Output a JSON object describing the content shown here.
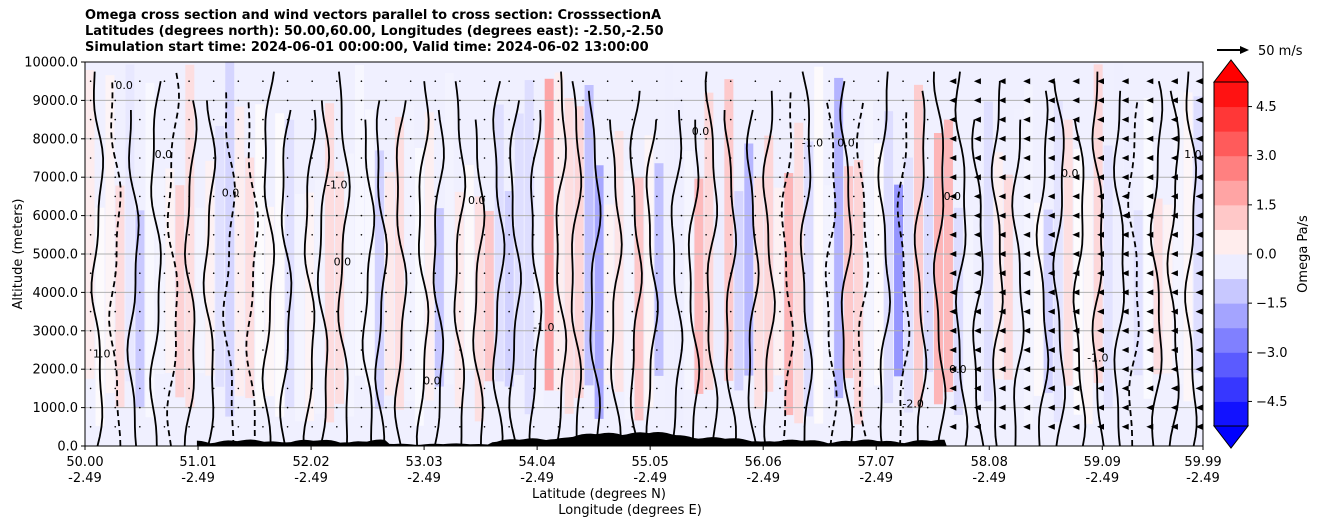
{
  "chart_data": {
    "type": "contour-cross-section",
    "title": {
      "line1": "Omega cross section and wind vectors parallel to cross section: CrosssectionA",
      "line2": "Latitudes (degrees north): 50.00,60.00, Longitudes (degrees east): -2.50,-2.50",
      "line3": "Simulation start time: 2024-06-01 00:00:00, Valid time: 2024-06-02 13:00:00"
    },
    "ylabel": "Altitude (meters)",
    "xlabel": "Latitude (degrees N)",
    "xlabel2": "Longitude (degrees E)",
    "ylim": [
      0,
      10000
    ],
    "xlim": [
      50.0,
      59.99
    ],
    "yticks": [
      "0.0",
      "1000.0",
      "2000.0",
      "3000.0",
      "4000.0",
      "5000.0",
      "6000.0",
      "7000.0",
      "8000.0",
      "9000.0",
      "10000.0"
    ],
    "ytick_values": [
      0,
      1000,
      2000,
      3000,
      4000,
      5000,
      6000,
      7000,
      8000,
      9000,
      10000
    ],
    "xticks": [
      {
        "lat": "50.00",
        "lon": "-2.49",
        "value": 50.0
      },
      {
        "lat": "51.01",
        "lon": "-2.49",
        "value": 51.01
      },
      {
        "lat": "52.02",
        "lon": "-2.49",
        "value": 52.02
      },
      {
        "lat": "53.03",
        "lon": "-2.49",
        "value": 53.03
      },
      {
        "lat": "54.04",
        "lon": "-2.49",
        "value": 54.04
      },
      {
        "lat": "55.05",
        "lon": "-2.49",
        "value": 55.05
      },
      {
        "lat": "56.06",
        "lon": "-2.49",
        "value": 56.06
      },
      {
        "lat": "57.07",
        "lon": "-2.49",
        "value": 57.07
      },
      {
        "lat": "58.08",
        "lon": "-2.49",
        "value": 58.08
      },
      {
        "lat": "59.09",
        "lon": "-2.49",
        "value": 59.09
      },
      {
        "lat": "59.99",
        "lon": "-2.49",
        "value": 59.99
      }
    ],
    "colorbar": {
      "label": "Omega Pa/s",
      "range": [
        -5.25,
        5.25
      ],
      "ticks": [
        "4.5",
        "3.0",
        "1.5",
        "0.0",
        "−1.5",
        "−3.0",
        "−4.5"
      ],
      "tick_values": [
        4.5,
        3.0,
        1.5,
        0.0,
        -1.5,
        -3.0,
        -4.5
      ],
      "levels": [
        -5.25,
        -4.5,
        -3.75,
        -3.0,
        -2.25,
        -1.5,
        -0.75,
        0.0,
        0.75,
        1.5,
        2.25,
        3.0,
        3.75,
        4.5,
        5.25
      ],
      "extend": "both"
    },
    "contour_labels": [
      {
        "text": "1.0",
        "x": 50.15,
        "y": 2300
      },
      {
        "text": "0.0",
        "x": 50.35,
        "y": 9300
      },
      {
        "text": "0.0",
        "x": 50.7,
        "y": 7500
      },
      {
        "text": "0.0",
        "x": 51.3,
        "y": 6500
      },
      {
        "text": "-1.0",
        "x": 52.25,
        "y": 6700
      },
      {
        "text": "0.0",
        "x": 52.3,
        "y": 4700
      },
      {
        "text": "0.0",
        "x": 53.5,
        "y": 6300
      },
      {
        "text": "-1.0",
        "x": 54.1,
        "y": 3000
      },
      {
        "text": "0.0",
        "x": 53.1,
        "y": 1600
      },
      {
        "text": "0.0",
        "x": 55.5,
        "y": 8100
      },
      {
        "text": "-1.0",
        "x": 56.5,
        "y": 7800
      },
      {
        "text": "0.0",
        "x": 56.8,
        "y": 7800
      },
      {
        "text": "0.0",
        "x": 57.75,
        "y": 6400
      },
      {
        "text": "0.0",
        "x": 57.8,
        "y": 1900
      },
      {
        "text": "0.0",
        "x": 58.8,
        "y": 7000
      },
      {
        "text": "-1.0",
        "x": 59.05,
        "y": 2200
      },
      {
        "text": "1.0",
        "x": 59.9,
        "y": 7500
      },
      {
        "text": "-2.0",
        "x": 57.4,
        "y": 1000
      }
    ],
    "wind_vector_key": {
      "label": "50 m/s"
    },
    "terrain": "black filled orography near surface between 51 and 58 degrees N"
  }
}
